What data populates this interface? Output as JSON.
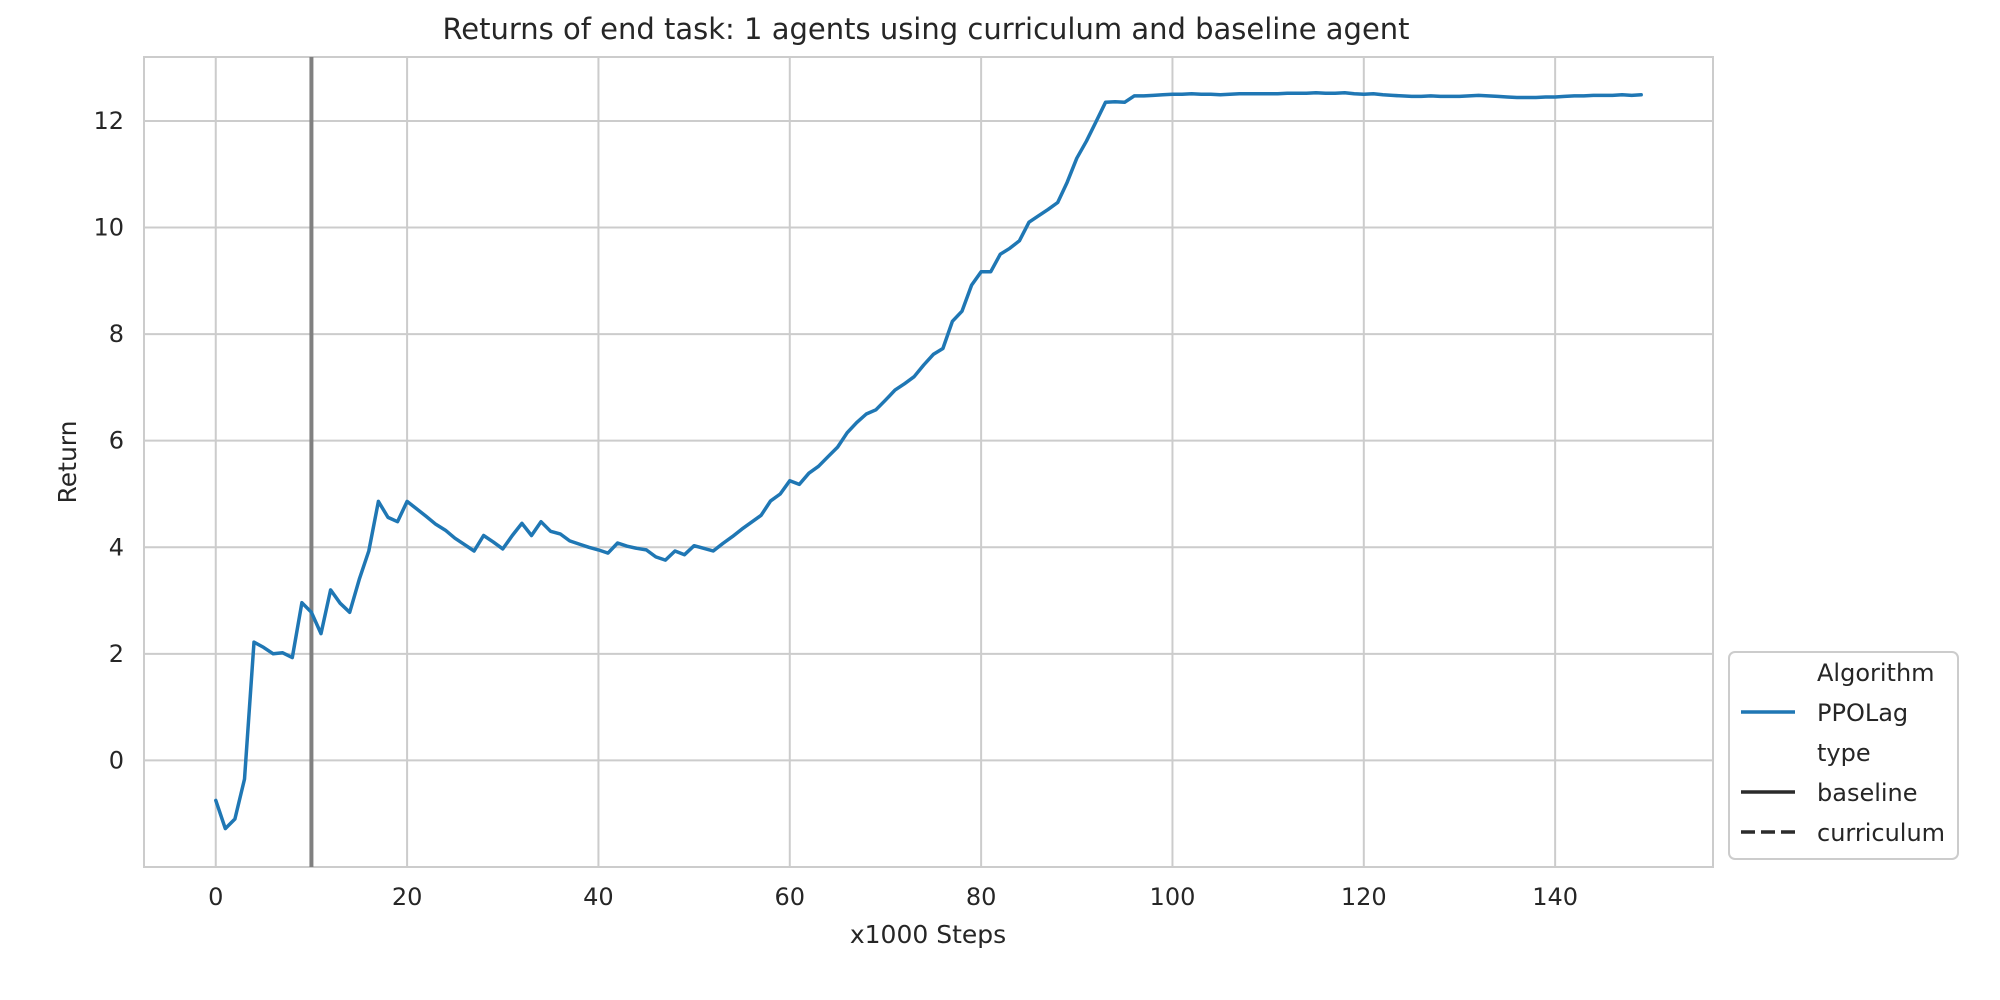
{
  "chart_data": {
    "type": "line",
    "title": "Returns of end task: 1 agents using curriculum and baseline agent",
    "xlabel": "x1000 Steps",
    "ylabel": "Return",
    "xlim": [
      -7.5,
      156.5
    ],
    "ylim": [
      -2.0,
      13.2
    ],
    "x_ticks": [
      0,
      20,
      40,
      60,
      80,
      100,
      120,
      140
    ],
    "y_ticks": [
      0,
      2,
      4,
      6,
      8,
      10,
      12
    ],
    "grid": true,
    "vertical_line_x": 10,
    "legend": {
      "placement": "lower-right-outside",
      "entries": [
        {
          "label": "Algorithm",
          "kind": "header"
        },
        {
          "label": "PPOLag",
          "kind": "color",
          "color": "#1f77b4"
        },
        {
          "label": "type",
          "kind": "header"
        },
        {
          "label": "baseline",
          "kind": "solid",
          "color": "#2b2b2b"
        },
        {
          "label": "curriculum",
          "kind": "dashed",
          "color": "#2b2b2b"
        }
      ]
    },
    "series": [
      {
        "name": "PPOLag",
        "type_style": "baseline",
        "color": "#1f77b4",
        "x": [
          0,
          1,
          2,
          3,
          4,
          5,
          6,
          7,
          8,
          9,
          10,
          11,
          12,
          13,
          14,
          15,
          16,
          17,
          18,
          19,
          20,
          21,
          22,
          23,
          24,
          25,
          26,
          27,
          28,
          29,
          30,
          31,
          32,
          33,
          34,
          35,
          36,
          37,
          38,
          39,
          40,
          41,
          42,
          43,
          44,
          45,
          46,
          47,
          48,
          49,
          50,
          51,
          52,
          53,
          54,
          55,
          56,
          57,
          58,
          59,
          60,
          61,
          62,
          63,
          64,
          65,
          66,
          67,
          68,
          69,
          70,
          71,
          72,
          73,
          74,
          75,
          76,
          77,
          78,
          79,
          80,
          81,
          82,
          83,
          84,
          85,
          86,
          87,
          88,
          89,
          90,
          91,
          92,
          93,
          94,
          95,
          96,
          97,
          98,
          99,
          100,
          101,
          102,
          103,
          104,
          105,
          106,
          107,
          108,
          109,
          110,
          111,
          112,
          113,
          114,
          115,
          116,
          117,
          118,
          119,
          120,
          121,
          122,
          123,
          124,
          125,
          126,
          127,
          128,
          129,
          130,
          131,
          132,
          133,
          134,
          135,
          136,
          137,
          138,
          139,
          140,
          141,
          142,
          143,
          144,
          145,
          146,
          147,
          148,
          149
        ],
        "y": [
          -0.75,
          -1.28,
          -1.1,
          -0.35,
          2.22,
          2.12,
          2.0,
          2.02,
          1.93,
          2.96,
          2.78,
          2.38,
          3.2,
          2.95,
          2.78,
          3.4,
          3.93,
          4.86,
          4.56,
          4.48,
          4.86,
          4.72,
          4.58,
          4.43,
          4.32,
          4.17,
          4.05,
          3.93,
          4.22,
          4.1,
          3.97,
          4.22,
          4.45,
          4.22,
          4.48,
          4.3,
          4.25,
          4.12,
          4.06,
          4.0,
          3.95,
          3.89,
          4.08,
          4.02,
          3.98,
          3.95,
          3.82,
          3.76,
          3.93,
          3.86,
          4.03,
          3.98,
          3.93,
          4.07,
          4.2,
          4.34,
          4.47,
          4.6,
          4.87,
          5.0,
          5.25,
          5.18,
          5.39,
          5.52,
          5.7,
          5.88,
          6.15,
          6.34,
          6.5,
          6.58,
          6.76,
          6.95,
          7.07,
          7.2,
          7.42,
          7.62,
          7.73,
          8.24,
          8.43,
          8.92,
          9.17,
          9.17,
          9.5,
          9.61,
          9.75,
          10.1,
          10.22,
          10.34,
          10.47,
          10.85,
          11.3,
          11.62,
          11.98,
          12.35,
          12.36,
          12.35,
          12.47,
          12.47,
          12.48,
          12.49,
          12.5,
          12.5,
          12.51,
          12.5,
          12.5,
          12.49,
          12.5,
          12.51,
          12.51,
          12.51,
          12.51,
          12.51,
          12.52,
          12.52,
          12.52,
          12.53,
          12.52,
          12.52,
          12.53,
          12.51,
          12.5,
          12.51,
          12.49,
          12.48,
          12.47,
          12.46,
          12.46,
          12.47,
          12.46,
          12.46,
          12.46,
          12.47,
          12.48,
          12.47,
          12.46,
          12.45,
          12.44,
          12.44,
          12.44,
          12.45,
          12.45,
          12.46,
          12.47,
          12.47,
          12.48,
          12.48,
          12.48,
          12.49,
          12.48,
          12.49
        ]
      }
    ]
  }
}
